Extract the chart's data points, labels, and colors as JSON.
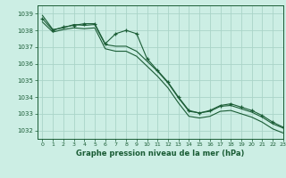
{
  "title": "Graphe pression niveau de la mer (hPa)",
  "background_color": "#cceee4",
  "grid_color": "#aad4c8",
  "line_color": "#1a5c35",
  "xlim": [
    -0.5,
    23
  ],
  "ylim": [
    1031.5,
    1039.5
  ],
  "yticks": [
    1032,
    1033,
    1034,
    1035,
    1036,
    1037,
    1038,
    1039
  ],
  "xticks": [
    0,
    1,
    2,
    3,
    4,
    5,
    6,
    7,
    8,
    9,
    10,
    11,
    12,
    13,
    14,
    15,
    16,
    17,
    18,
    19,
    20,
    21,
    22,
    23
  ],
  "series": [
    {
      "x": [
        0,
        1,
        2,
        3,
        4,
        5,
        6,
        7,
        8,
        9,
        10,
        11,
        12,
        13,
        14,
        15,
        16,
        17,
        18,
        19,
        20,
        21,
        22,
        23
      ],
      "y": [
        1038.7,
        1038.0,
        1038.2,
        1038.3,
        1038.4,
        1038.4,
        1037.2,
        1037.8,
        1038.0,
        1037.8,
        1036.3,
        1035.6,
        1034.9,
        1034.0,
        1033.2,
        1033.05,
        1033.2,
        1033.5,
        1033.6,
        1033.4,
        1033.2,
        1032.9,
        1032.5,
        1032.2
      ],
      "marker": true
    },
    {
      "x": [
        0,
        1,
        2,
        3,
        4,
        5,
        6,
        7,
        8,
        9,
        10,
        11,
        12,
        13,
        14,
        15,
        16,
        17,
        18,
        19,
        20,
        21,
        22,
        23
      ],
      "y": [
        1038.9,
        1038.05,
        1038.15,
        1038.35,
        1038.3,
        1038.35,
        1037.15,
        1037.05,
        1037.05,
        1036.75,
        1036.15,
        1035.55,
        1034.85,
        1033.95,
        1033.15,
        1033.05,
        1033.15,
        1033.45,
        1033.5,
        1033.3,
        1033.1,
        1032.8,
        1032.4,
        1032.15
      ],
      "marker": false
    },
    {
      "x": [
        0,
        1,
        2,
        3,
        4,
        5,
        6,
        7,
        8,
        9,
        10,
        11,
        12,
        13,
        14,
        15,
        16,
        17,
        18,
        19,
        20,
        21,
        22,
        23
      ],
      "y": [
        1038.5,
        1037.9,
        1038.05,
        1038.15,
        1038.1,
        1038.15,
        1036.9,
        1036.75,
        1036.75,
        1036.45,
        1035.85,
        1035.25,
        1034.55,
        1033.65,
        1032.85,
        1032.75,
        1032.85,
        1033.15,
        1033.2,
        1033.0,
        1032.8,
        1032.5,
        1032.1,
        1031.85
      ],
      "marker": false
    }
  ],
  "title_fontsize": 6,
  "tick_fontsize": 5
}
